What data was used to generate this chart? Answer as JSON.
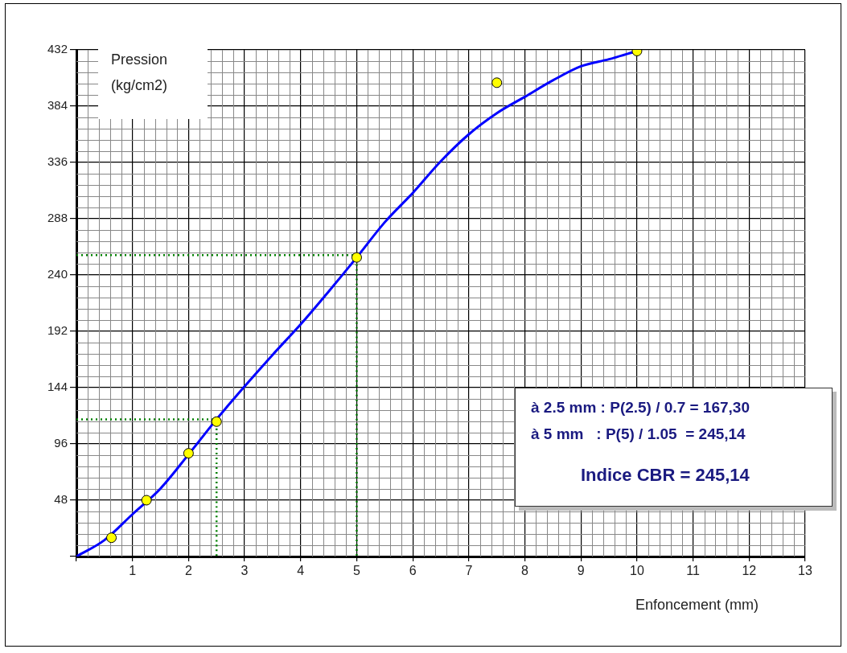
{
  "chart_data": {
    "type": "line",
    "ylabel": "Pression (kg/cm2)",
    "xlabel": "Enfoncement (mm)",
    "annotations": [
      "à 2.5 mm : P(2.5) / 0.7 = 167,30",
      "à 5 mm   : P(5) / 1.05  = 245,14",
      "Indice CBR = 245,14"
    ],
    "xlim": [
      0,
      13
    ],
    "ylim": [
      0,
      432
    ],
    "xticks": [
      {
        "value": 0,
        "label": null
      },
      1,
      2,
      3,
      4,
      5,
      6,
      7,
      8,
      9,
      10,
      11,
      12,
      13
    ],
    "yticks": [
      {
        "value": 0,
        "label": null
      },
      48,
      96,
      144,
      192,
      240,
      288,
      336,
      384,
      432
    ],
    "grid": true,
    "legend": false,
    "series": [
      {
        "color": "#0000ff",
        "marker": "none",
        "line_style": "solid",
        "x": [
          0,
          0.5,
          1,
          1.5,
          2,
          2.5,
          3,
          3.5,
          4,
          4.5,
          5,
          5.5,
          6,
          6.5,
          7,
          7.5,
          8,
          8.5,
          9,
          9.5,
          10
        ],
        "values": [
          0,
          14,
          36,
          58,
          87,
          117,
          145,
          172,
          198,
          226,
          255,
          285,
          310,
          337,
          360,
          378,
          392,
          406,
          418,
          424,
          431
        ]
      },
      {
        "type": "line",
        "color": "#008000",
        "marker": "none",
        "line_style": "dotted",
        "x": [
          0,
          2.5,
          2.5
        ],
        "values": [
          117,
          117,
          0
        ]
      },
      {
        "type": "line",
        "color": "#008000",
        "marker": "none",
        "line_style": "dotted",
        "x": [
          0,
          5,
          5
        ],
        "values": [
          257,
          257,
          0
        ]
      },
      {
        "type": "scatter",
        "color": "#ffff00",
        "marker": "circle",
        "x": [
          0.625,
          1.25,
          2,
          2.5,
          5,
          7.5,
          10
        ],
        "values": [
          16,
          48,
          88,
          115,
          255,
          404,
          431
        ]
      }
    ]
  }
}
